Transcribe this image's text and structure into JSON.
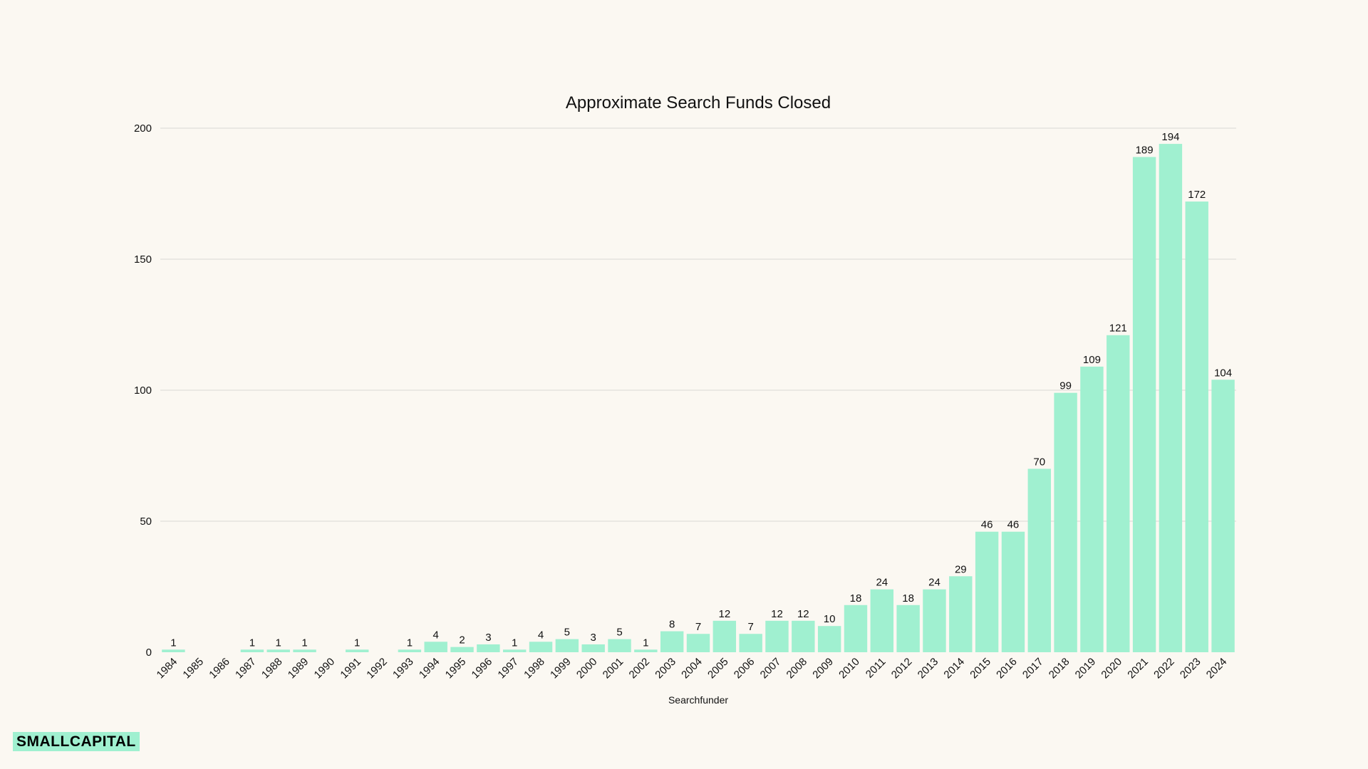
{
  "chart_data": {
    "type": "bar",
    "title": "Approximate Search Funds Closed",
    "xlabel": "Searchfunder",
    "ylabel": "",
    "ylim": [
      0,
      200
    ],
    "yticks": [
      0,
      50,
      100,
      150,
      200
    ],
    "grid": true,
    "categories": [
      "1984",
      "1985",
      "1986",
      "1987",
      "1988",
      "1989",
      "1990",
      "1991",
      "1992",
      "1993",
      "1994",
      "1995",
      "1996",
      "1997",
      "1998",
      "1999",
      "2000",
      "2001",
      "2002",
      "2003",
      "2004",
      "2005",
      "2006",
      "2007",
      "2008",
      "2009",
      "2010",
      "2011",
      "2012",
      "2013",
      "2014",
      "2015",
      "2016",
      "2017",
      "2018",
      "2019",
      "2020",
      "2021",
      "2022",
      "2023",
      "2024"
    ],
    "values": [
      1,
      0,
      0,
      1,
      1,
      1,
      0,
      1,
      0,
      1,
      4,
      2,
      3,
      1,
      4,
      5,
      3,
      5,
      1,
      8,
      7,
      12,
      7,
      12,
      12,
      10,
      18,
      24,
      18,
      24,
      29,
      46,
      46,
      70,
      99,
      109,
      121,
      189,
      194,
      172,
      104
    ],
    "bar_color": "#a0f0d0"
  },
  "brand": {
    "logo_text": "SMALLCAPITAL",
    "accent_color": "#a0f0d0"
  }
}
